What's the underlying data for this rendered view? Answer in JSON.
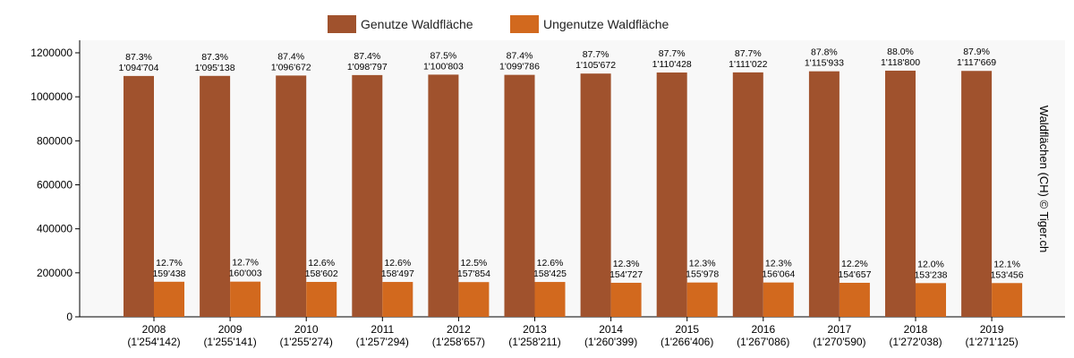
{
  "chart_data": {
    "type": "bar",
    "x": [
      {
        "year": "2008",
        "total": "(1'254'142)"
      },
      {
        "year": "2009",
        "total": "(1'255'141)"
      },
      {
        "year": "2010",
        "total": "(1'255'274)"
      },
      {
        "year": "2011",
        "total": "(1'257'294)"
      },
      {
        "year": "2012",
        "total": "(1'258'657)"
      },
      {
        "year": "2013",
        "total": "(1'258'211)"
      },
      {
        "year": "2014",
        "total": "(1'260'399)"
      },
      {
        "year": "2015",
        "total": "(1'266'406)"
      },
      {
        "year": "2016",
        "total": "(1'267'086)"
      },
      {
        "year": "2017",
        "total": "(1'270'590)"
      },
      {
        "year": "2018",
        "total": "(1'272'038)"
      },
      {
        "year": "2019",
        "total": "(1'271'125)"
      }
    ],
    "series": [
      {
        "name": "Genutze Waldfläche",
        "color": "#a0522d",
        "values": [
          1094704,
          1095138,
          1096672,
          1098797,
          1100803,
          1099786,
          1105672,
          1110428,
          1111022,
          1115933,
          1118800,
          1117669
        ],
        "value_labels": [
          "1'094'704",
          "1'095'138",
          "1'096'672",
          "1'098'797",
          "1'100'803",
          "1'099'786",
          "1'105'672",
          "1'110'428",
          "1'111'022",
          "1'115'933",
          "1'118'800",
          "1'117'669"
        ],
        "percent_labels": [
          "87.3%",
          "87.3%",
          "87.4%",
          "87.4%",
          "87.5%",
          "87.4%",
          "87.7%",
          "87.7%",
          "87.7%",
          "87.8%",
          "88.0%",
          "87.9%"
        ]
      },
      {
        "name": "Ungenutze Waldfläche",
        "color": "#d2691e",
        "values": [
          159438,
          160003,
          158602,
          158497,
          157854,
          158425,
          154727,
          155978,
          156064,
          154657,
          153238,
          153456
        ],
        "value_labels": [
          "159'438",
          "160'003",
          "158'602",
          "158'497",
          "157'854",
          "158'425",
          "154'727",
          "155'978",
          "156'064",
          "154'657",
          "153'238",
          "153'456"
        ],
        "percent_labels": [
          "12.7%",
          "12.7%",
          "12.6%",
          "12.6%",
          "12.5%",
          "12.6%",
          "12.3%",
          "12.3%",
          "12.3%",
          "12.2%",
          "12.0%",
          "12.1%"
        ]
      }
    ],
    "y_ticks": [
      "0",
      "200000",
      "400000",
      "600000",
      "800000",
      "1000000",
      "1200000"
    ],
    "ylim": [
      0,
      1200000
    ],
    "side_label": "Waldflächen (CH) © Tiger.ch",
    "legend_position": "top-center",
    "grid": false
  }
}
